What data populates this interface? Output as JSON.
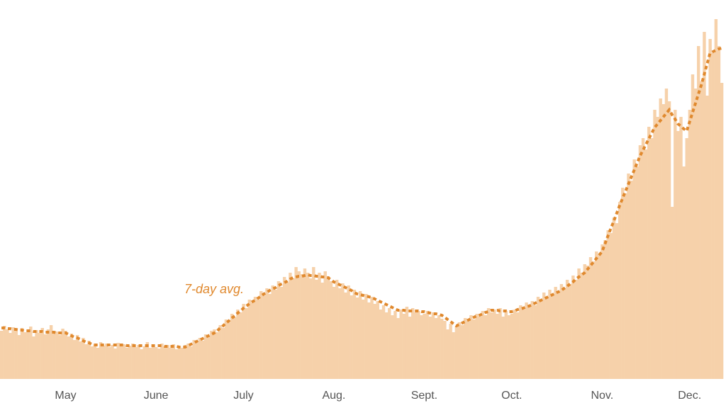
{
  "chart_data": {
    "type": "bar",
    "categories": [
      null,
      null,
      null,
      null,
      null,
      null,
      null,
      null,
      null,
      null,
      null,
      null,
      null,
      null,
      null,
      null,
      null,
      null,
      null,
      null,
      null,
      null,
      "May",
      null,
      null,
      null,
      null,
      null,
      null,
      null,
      null,
      null,
      null,
      null,
      null,
      null,
      null,
      null,
      null,
      null,
      null,
      null,
      null,
      null,
      null,
      null,
      null,
      null,
      null,
      null,
      null,
      null,
      null,
      "June",
      null,
      null,
      null,
      null,
      null,
      null,
      null,
      null,
      null,
      null,
      null,
      null,
      null,
      null,
      null,
      null,
      null,
      null,
      null,
      null,
      null,
      null,
      null,
      null,
      null,
      null,
      null,
      null,
      null,
      "July",
      null,
      null,
      null,
      null,
      null,
      null,
      null,
      null,
      null,
      null,
      null,
      null,
      null,
      null,
      null,
      null,
      null,
      null,
      null,
      null,
      null,
      null,
      null,
      null,
      null,
      null,
      null,
      null,
      null,
      null,
      "Aug.",
      null,
      null,
      null,
      null,
      null,
      null,
      null,
      null,
      null,
      null,
      null,
      null,
      null,
      null,
      null,
      null,
      null,
      null,
      null,
      null,
      null,
      null,
      null,
      null,
      null,
      null,
      null,
      null,
      null,
      null,
      "Sept.",
      null,
      null,
      null,
      null,
      null,
      null,
      null,
      null,
      null,
      null,
      null,
      null,
      null,
      null,
      null,
      null,
      null,
      null,
      null,
      null,
      null,
      null,
      null,
      null,
      null,
      null,
      null,
      null,
      null,
      "Oct.",
      null,
      null,
      null,
      null,
      null,
      null,
      null,
      null,
      null,
      null,
      null,
      null,
      null,
      null,
      null,
      null,
      null,
      null,
      null,
      null,
      null,
      null,
      null,
      null,
      null,
      null,
      null,
      null,
      null,
      null,
      "Nov.",
      null,
      null,
      null,
      null,
      null,
      null,
      null,
      null,
      null,
      null,
      null,
      null,
      null,
      null,
      null,
      null,
      null,
      null,
      null,
      null,
      null,
      null,
      null,
      null,
      null,
      null,
      null,
      null,
      null,
      "Dec.",
      null,
      null,
      null,
      null,
      null,
      null,
      null,
      null,
      null,
      null,
      null
    ],
    "values": [
      68,
      75,
      70,
      65,
      73,
      69,
      62,
      72,
      66,
      70,
      74,
      60,
      69,
      65,
      72,
      63,
      70,
      76,
      64,
      67,
      62,
      71,
      68,
      60,
      64,
      55,
      62,
      53,
      58,
      49,
      54,
      46,
      50,
      44,
      52,
      47,
      50,
      45,
      48,
      43,
      51,
      46,
      49,
      44,
      47,
      50,
      45,
      48,
      42,
      46,
      52,
      44,
      48,
      45,
      43,
      50,
      46,
      48,
      44,
      49,
      42,
      47,
      44,
      48,
      50,
      46,
      55,
      51,
      58,
      54,
      63,
      60,
      68,
      70,
      66,
      76,
      72,
      84,
      80,
      92,
      87,
      98,
      94,
      106,
      100,
      112,
      108,
      116,
      112,
      124,
      118,
      128,
      120,
      132,
      126,
      138,
      130,
      144,
      136,
      150,
      142,
      158,
      152,
      148,
      156,
      150,
      142,
      158,
      140,
      150,
      136,
      152,
      145,
      138,
      130,
      140,
      128,
      135,
      122,
      132,
      118,
      126,
      115,
      124,
      112,
      120,
      108,
      116,
      106,
      110,
      98,
      104,
      94,
      100,
      90,
      96,
      86,
      98,
      92,
      102,
      88,
      100,
      94,
      96,
      90,
      92,
      96,
      88,
      94,
      86,
      90,
      85,
      82,
      70,
      78,
      66,
      74,
      80,
      76,
      86,
      82,
      90,
      84,
      92,
      88,
      96,
      90,
      100,
      94,
      98,
      92,
      100,
      88,
      96,
      90,
      92,
      98,
      94,
      104,
      98,
      108,
      102,
      110,
      104,
      116,
      110,
      122,
      116,
      126,
      120,
      130,
      124,
      134,
      128,
      140,
      134,
      146,
      140,
      156,
      150,
      162,
      160,
      172,
      166,
      180,
      176,
      190,
      196,
      210,
      206,
      228,
      220,
      250,
      270,
      262,
      290,
      280,
      310,
      300,
      330,
      340,
      324,
      356,
      340,
      380,
      370,
      396,
      388,
      410,
      392,
      243,
      380,
      350,
      370,
      300,
      340,
      380,
      430,
      410,
      470,
      420,
      490,
      400,
      480,
      460,
      508,
      470,
      418
    ],
    "color": "#f6d1aa",
    "line": {
      "label": "7-day avg.",
      "color": "#e0892e",
      "values": [
        72,
        72,
        71,
        71,
        70,
        70,
        69,
        69,
        68,
        68,
        68,
        67,
        67,
        67,
        67,
        66,
        66,
        66,
        66,
        65,
        65,
        65,
        65,
        63,
        61,
        59,
        58,
        56,
        54,
        52,
        51,
        49,
        48,
        48,
        48,
        48,
        48,
        48,
        48,
        48,
        48,
        48,
        48,
        47,
        47,
        47,
        47,
        47,
        47,
        47,
        47,
        47,
        47,
        47,
        47,
        47,
        46,
        46,
        46,
        46,
        46,
        45,
        45,
        45,
        47,
        49,
        51,
        53,
        55,
        57,
        59,
        61,
        63,
        65,
        68,
        72,
        75,
        79,
        82,
        86,
        89,
        93,
        96,
        100,
        103,
        106,
        109,
        111,
        114,
        117,
        120,
        122,
        125,
        127,
        129,
        132,
        134,
        136,
        138,
        141,
        143,
        144,
        145,
        145,
        146,
        147,
        146,
        146,
        145,
        145,
        144,
        144,
        143,
        140,
        137,
        135,
        133,
        131,
        129,
        127,
        125,
        122,
        120,
        119,
        118,
        117,
        116,
        115,
        113,
        111,
        109,
        107,
        105,
        103,
        101,
        99,
        97,
        97,
        97,
        96,
        96,
        96,
        96,
        96,
        95,
        95,
        94,
        93,
        92,
        92,
        91,
        90,
        87,
        84,
        81,
        78,
        75,
        77,
        79,
        81,
        83,
        85,
        87,
        89,
        90,
        92,
        94,
        95,
        97,
        97,
        97,
        96,
        96,
        96,
        95,
        95,
        96,
        98,
        99,
        100,
        102,
        103,
        105,
        107,
        109,
        111,
        113,
        115,
        117,
        119,
        121,
        123,
        125,
        128,
        131,
        134,
        137,
        141,
        144,
        147,
        150,
        155,
        160,
        165,
        170,
        175,
        180,
        191,
        202,
        213,
        223,
        234,
        245,
        255,
        265,
        275,
        285,
        295,
        305,
        315,
        323,
        331,
        339,
        347,
        355,
        360,
        365,
        370,
        375,
        380,
        373,
        367,
        360,
        357,
        353,
        350,
        363,
        376,
        389,
        402,
        415,
        430,
        445,
        460,
        462,
        464,
        466,
        467
      ]
    }
  }
}
